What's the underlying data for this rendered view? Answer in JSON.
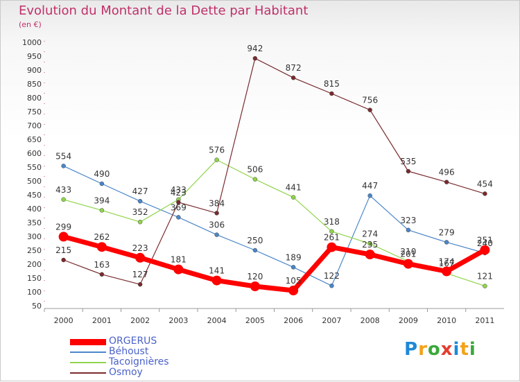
{
  "title": "Evolution du Montant de la Dette par Habitant",
  "subtitle": "(en €)",
  "logo": {
    "text": "Proxiti",
    "letters": [
      {
        "ch": "P",
        "color": "#1e88d8"
      },
      {
        "ch": "r",
        "color": "#f3a21a"
      },
      {
        "ch": "o",
        "color": "#3aa83a"
      },
      {
        "ch": "x",
        "color": "#e33d2f"
      },
      {
        "ch": "i",
        "color": "#1e88d8"
      },
      {
        "ch": "t",
        "color": "#f3a21a"
      },
      {
        "ch": "i",
        "color": "#3aa83a"
      }
    ]
  },
  "chart_data": {
    "type": "line",
    "x": [
      "2000",
      "2001",
      "2002",
      "2003",
      "2004",
      "2005",
      "2006",
      "2007",
      "2008",
      "2009",
      "2010",
      "2011"
    ],
    "ylim": [
      50,
      1000
    ],
    "yticks": [
      50,
      100,
      150,
      200,
      250,
      300,
      350,
      400,
      450,
      500,
      550,
      600,
      650,
      700,
      750,
      800,
      850,
      900,
      950,
      1000
    ],
    "grid": false,
    "legend_position": "bottom-left",
    "series": [
      {
        "name": "Béhoust",
        "color": "#4a86c8",
        "width": 1.2,
        "values": [
          554,
          490,
          427,
          369,
          306,
          250,
          189,
          122,
          447,
          323,
          279,
          240
        ],
        "labels": [
          "554",
          "490",
          "427",
          "369",
          "306",
          "250",
          "189",
          "122",
          "447",
          "323",
          "279",
          "240"
        ]
      },
      {
        "name": "Tacoignières",
        "color": "#8fd44a",
        "width": 1.2,
        "values": [
          433,
          394,
          352,
          433,
          576,
          506,
          441,
          318,
          274,
          210,
          167,
          121
        ],
        "labels": [
          "433",
          "394",
          "352",
          "433",
          "576",
          "506",
          "441",
          "318",
          "274",
          "210",
          "167",
          "121"
        ]
      },
      {
        "name": "Osmoy",
        "color": "#7a2a2e",
        "width": 1.2,
        "values": [
          215,
          163,
          127,
          423,
          384,
          942,
          872,
          815,
          756,
          535,
          496,
          454
        ],
        "labels": [
          "215",
          "163",
          "127",
          "423",
          "384",
          "942",
          "872",
          "815",
          "756",
          "535",
          "496",
          "454"
        ]
      },
      {
        "name": "ORGERUS",
        "color": "#ff0000",
        "width": 7,
        "values": [
          299,
          262,
          223,
          181,
          141,
          120,
          105,
          261,
          235,
          201,
          174,
          251
        ],
        "labels": [
          "299",
          "262",
          "223",
          "181",
          "141",
          "120",
          "105",
          "261",
          "235",
          "201",
          "174",
          "251"
        ]
      }
    ],
    "legend": [
      {
        "name": "ORGERUS",
        "color": "#ff0000",
        "thick": true
      },
      {
        "name": "Béhoust",
        "color": "#4a86c8",
        "thick": false
      },
      {
        "name": "Tacoignières",
        "color": "#8fd44a",
        "thick": false
      },
      {
        "name": "Osmoy",
        "color": "#7a2a2e",
        "thick": false
      }
    ]
  }
}
